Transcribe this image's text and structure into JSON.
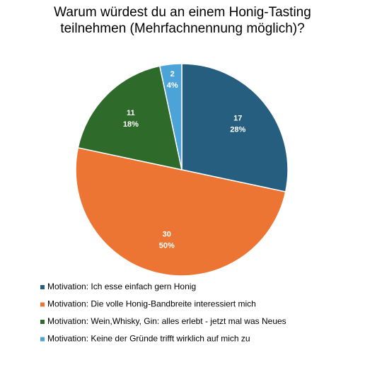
{
  "chart_data": {
    "type": "pie",
    "title": "Warum würdest du an einem Honig-Tasting teilnehmen (Mehrfachnennung möglich)?",
    "categories": [
      "Motivation: Ich esse einfach gern Honig",
      "Motivation: Die volle Honig-Bandbreite interessiert mich",
      "Motivation: Wein,Whisky, Gin: alles erlebt - jetzt mal was Neues",
      "Motivation: Keine der Gründe trifft wirklich auf mich zu"
    ],
    "values": [
      17,
      30,
      11,
      2
    ],
    "percent_labels": [
      "28%",
      "50%",
      "18%",
      "4%"
    ],
    "colors": [
      "#255e7e",
      "#ec7533",
      "#2e6a2a",
      "#4ba3d7"
    ],
    "start": "top",
    "direction": "clockwise",
    "legend": "bottom"
  }
}
